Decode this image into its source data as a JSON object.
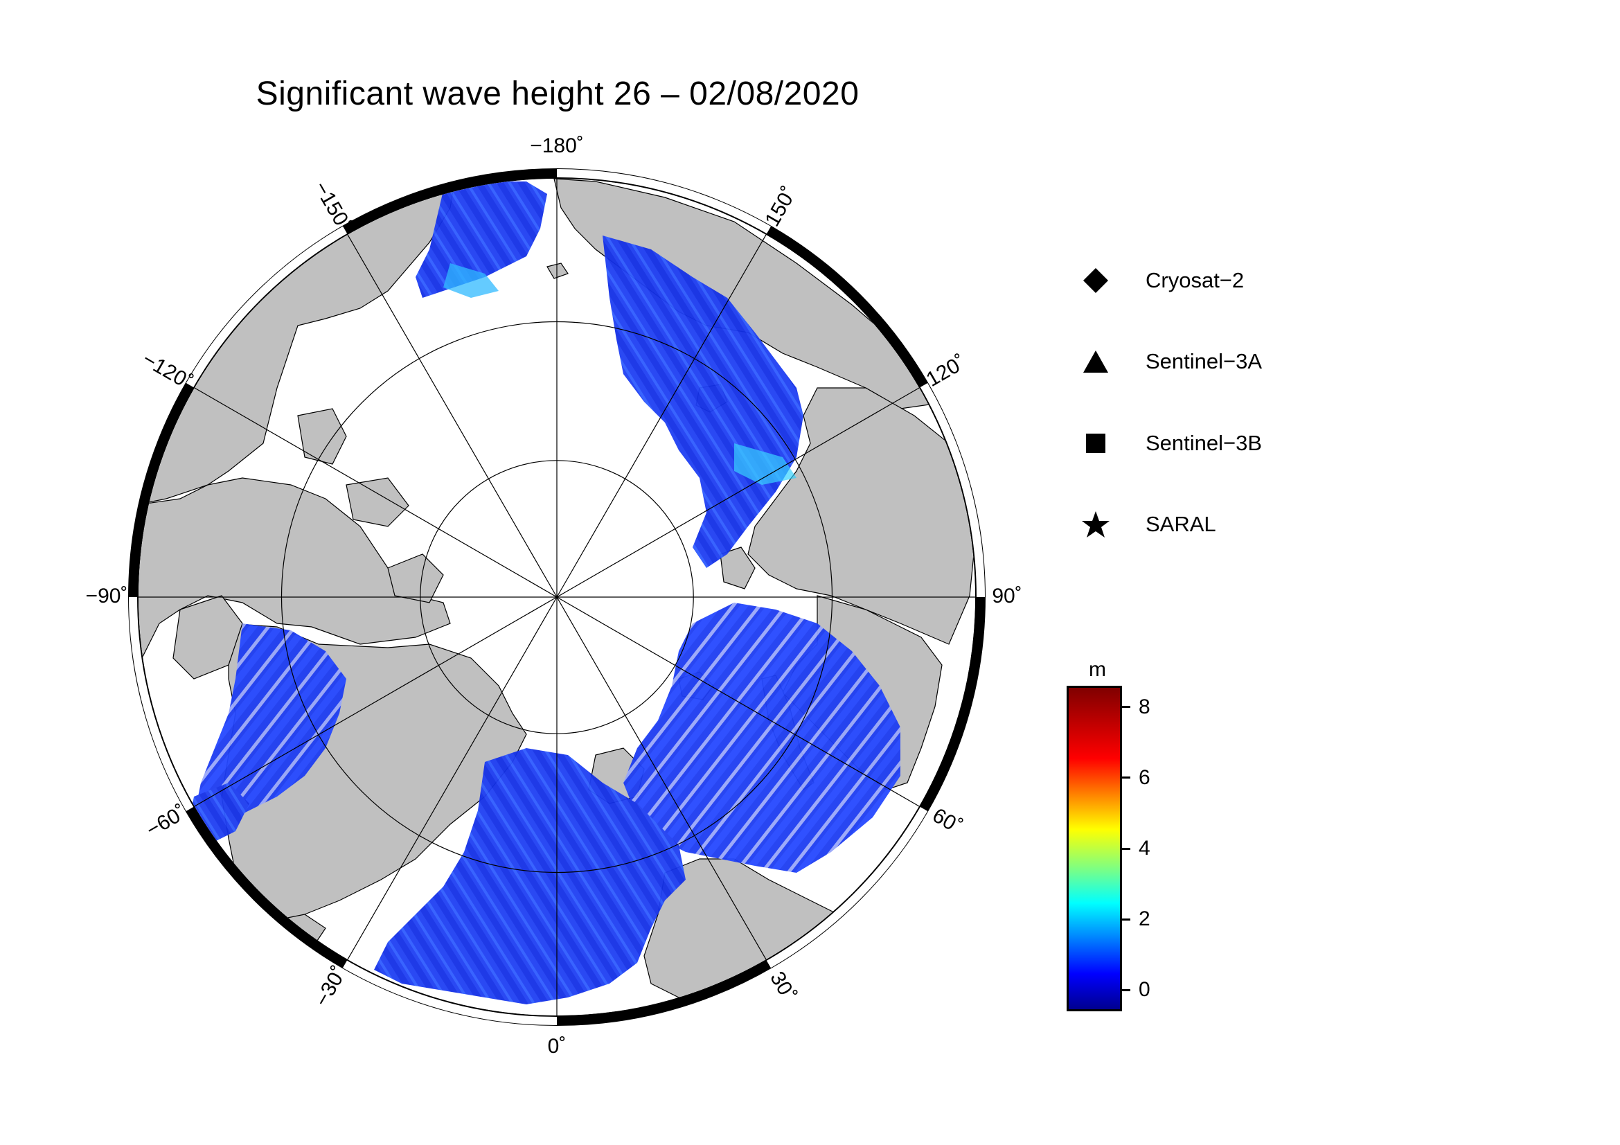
{
  "title": "Significant wave height 26 – 02/08/2020",
  "map": {
    "projection": "north-polar-stereographic",
    "center_lon_bottom": 0,
    "meridian_step_deg": 30,
    "inner_circles_lat": [
      80,
      70
    ],
    "land_color": "#c0c0c0",
    "ice_color": "#ffffff",
    "frame_colors": [
      "#000000",
      "#ffffff"
    ],
    "longitude_labels": [
      {
        "lon": -180,
        "text": "−180˚"
      },
      {
        "lon": 150,
        "text": "150˚"
      },
      {
        "lon": 120,
        "text": "120˚"
      },
      {
        "lon": 90,
        "text": "90˚"
      },
      {
        "lon": 60,
        "text": "60˚"
      },
      {
        "lon": 30,
        "text": "30˚"
      },
      {
        "lon": 0,
        "text": "0˚"
      },
      {
        "lon": -30,
        "text": "−30˚"
      },
      {
        "lon": -60,
        "text": "−60˚"
      },
      {
        "lon": -90,
        "text": "−90˚"
      },
      {
        "lon": -120,
        "text": "−120˚"
      },
      {
        "lon": -150,
        "text": "−150˚"
      }
    ]
  },
  "legend": [
    {
      "symbol": "diamond",
      "label": "Cryosat−2"
    },
    {
      "symbol": "triangle",
      "label": "Sentinel−3A"
    },
    {
      "symbol": "square",
      "label": "Sentinel−3B"
    },
    {
      "symbol": "star",
      "label": "SARAL"
    }
  ],
  "colorbar": {
    "unit": "m",
    "min": -0.6,
    "max": 8.6,
    "ticks": [
      {
        "value": 8,
        "label": "8"
      },
      {
        "value": 6,
        "label": "6"
      },
      {
        "value": 4,
        "label": "4"
      },
      {
        "value": 2,
        "label": "2"
      },
      {
        "value": 0,
        "label": "0"
      }
    ],
    "colormap": [
      "#00008f",
      "#0000ff",
      "#0080ff",
      "#00ffff",
      "#80ff80",
      "#ffff00",
      "#ff8000",
      "#ff0000",
      "#800000"
    ]
  },
  "wave_color_main": "#1a3cf0",
  "wave_color_high": "#1aa6ff"
}
